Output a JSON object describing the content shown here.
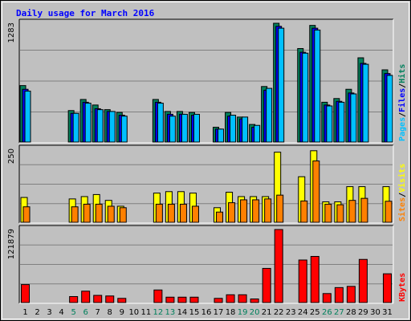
{
  "chart_data": [
    {
      "type": "bar",
      "title": "Daily usage for March 2016",
      "categories": [
        "1",
        "2",
        "3",
        "4",
        "5",
        "6",
        "7",
        "8",
        "9",
        "10",
        "11",
        "12",
        "13",
        "14",
        "15",
        "16",
        "17",
        "18",
        "19",
        "20",
        "21",
        "22",
        "23",
        "24",
        "25",
        "26",
        "27",
        "28",
        "29",
        "30",
        "31"
      ],
      "weekend_days": [
        "5",
        "6",
        "12",
        "13",
        "19",
        "20",
        "26",
        "27"
      ],
      "ymax_label": "1283",
      "ylim": [
        0,
        1283
      ],
      "legend": [
        "Pages",
        "/",
        "Files",
        "/",
        "Hits"
      ],
      "series": [
        {
          "name": "Hits",
          "color": "#00805c",
          "values": [
            610,
            0,
            0,
            0,
            340,
            460,
            400,
            350,
            320,
            0,
            0,
            460,
            330,
            330,
            320,
            0,
            160,
            320,
            270,
            190,
            600,
            1283,
            0,
            1010,
            1260,
            430,
            470,
            570,
            910,
            0,
            780
          ]
        },
        {
          "name": "Files",
          "color": "#0000ff",
          "values": [
            570,
            0,
            0,
            0,
            310,
            430,
            360,
            330,
            290,
            0,
            0,
            430,
            300,
            300,
            290,
            0,
            140,
            280,
            250,
            160,
            560,
            1250,
            0,
            970,
            1230,
            400,
            440,
            530,
            850,
            0,
            740
          ]
        },
        {
          "name": "Pages",
          "color": "#00c0ff",
          "values": [
            550,
            0,
            0,
            0,
            310,
            420,
            350,
            330,
            280,
            0,
            0,
            420,
            280,
            300,
            300,
            0,
            140,
            290,
            270,
            180,
            580,
            1230,
            0,
            960,
            1210,
            390,
            430,
            520,
            840,
            0,
            720
          ]
        }
      ]
    },
    {
      "type": "bar",
      "ymax_label": "250",
      "ylim": [
        0,
        250
      ],
      "legend": [
        "Sites",
        "/",
        "Visits"
      ],
      "series": [
        {
          "name": "Visits",
          "color": "#ffff00",
          "values": [
            85,
            0,
            0,
            0,
            80,
            88,
            95,
            75,
            55,
            0,
            0,
            100,
            105,
            105,
            100,
            0,
            50,
            103,
            88,
            88,
            88,
            240,
            0,
            156,
            245,
            70,
            70,
            122,
            122,
            0,
            122
          ]
        },
        {
          "name": "Sites",
          "color": "#ff8000",
          "values": [
            53,
            0,
            0,
            0,
            53,
            62,
            62,
            55,
            50,
            0,
            0,
            62,
            62,
            62,
            55,
            0,
            35,
            67,
            77,
            77,
            80,
            93,
            0,
            73,
            210,
            62,
            60,
            75,
            82,
            0,
            72
          ]
        }
      ]
    },
    {
      "type": "bar",
      "ymax_label": "121879",
      "ylim": [
        0,
        121879
      ],
      "legend": [
        "KBytes"
      ],
      "series": [
        {
          "name": "KBytes",
          "color": "#ff0000",
          "values": [
            30000,
            0,
            0,
            0,
            10000,
            19000,
            12000,
            11000,
            7000,
            0,
            0,
            21000,
            9000,
            9000,
            9000,
            0,
            7000,
            13000,
            13000,
            6000,
            57000,
            121879,
            0,
            71000,
            77000,
            15000,
            25000,
            27000,
            72000,
            0,
            48000
          ]
        }
      ]
    }
  ]
}
